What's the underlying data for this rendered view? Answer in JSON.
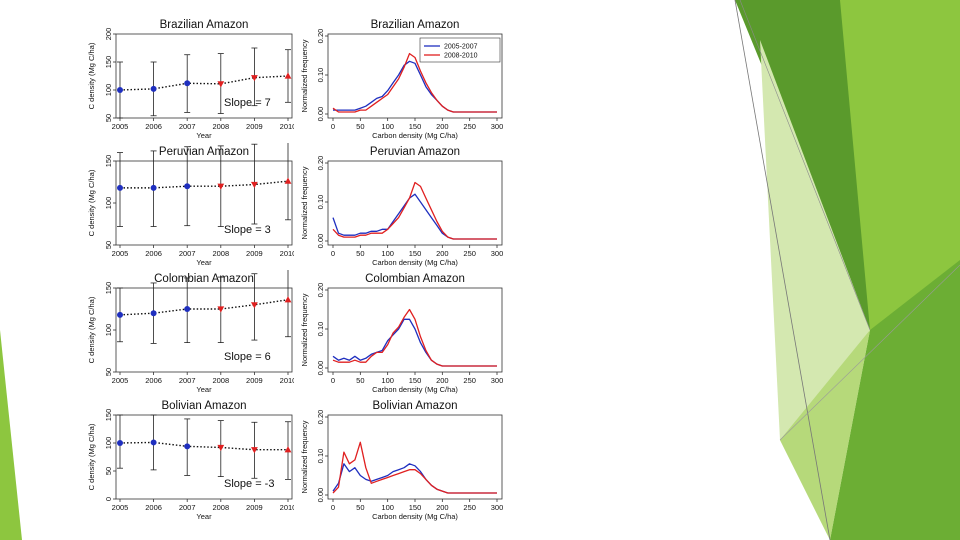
{
  "colors": {
    "series_early": "#1f2fbf",
    "series_late": "#e02020",
    "trend": "#111111",
    "slide_green_dark": "#5a9a2c",
    "slide_green_mid": "#8dc63f",
    "slide_green_light": "#d4e8b0"
  },
  "chart_data": [
    {
      "type": "scatter",
      "title": "Brazilian Amazon",
      "xlabel": "Year",
      "ylabel": "C density (Mg C/ha)",
      "x": [
        2005,
        2006,
        2007,
        2008,
        2009,
        2010
      ],
      "values": [
        100,
        102,
        112,
        111,
        122,
        125
      ],
      "errors": [
        [
          50,
          150
        ],
        [
          54,
          150
        ],
        [
          60,
          163
        ],
        [
          58,
          165
        ],
        [
          72,
          175
        ],
        [
          78,
          172
        ]
      ],
      "marker_series": [
        "2005-2007",
        "2005-2007",
        "2005-2007",
        "2008-2010",
        "2008-2010",
        "2008-2010"
      ],
      "ylim": [
        50,
        200
      ],
      "yticks": [
        50,
        100,
        150,
        200
      ],
      "slope_label": "Slope = 7"
    },
    {
      "type": "line",
      "title": "Brazilian Amazon",
      "xlabel": "Carbon density (Mg C/ha)",
      "ylabel": "Normalized frequency",
      "xlim": [
        0,
        300
      ],
      "ylim": [
        0,
        0.2
      ],
      "xticks": [
        0,
        50,
        100,
        150,
        200,
        250,
        300
      ],
      "yticks": [
        "0.00",
        "0.10",
        "0.20"
      ],
      "legend": [
        "2005-2007",
        "2008-2010"
      ],
      "x": [
        0,
        10,
        20,
        30,
        40,
        50,
        60,
        70,
        80,
        90,
        100,
        110,
        120,
        130,
        140,
        150,
        160,
        170,
        180,
        190,
        200,
        210,
        220,
        230,
        240,
        250,
        260,
        270,
        280,
        290,
        300
      ],
      "series": [
        {
          "name": "2005-2007",
          "values": [
            0.01,
            0.01,
            0.01,
            0.01,
            0.01,
            0.015,
            0.02,
            0.03,
            0.04,
            0.045,
            0.06,
            0.08,
            0.1,
            0.125,
            0.135,
            0.13,
            0.1,
            0.07,
            0.05,
            0.035,
            0.02,
            0.01,
            0.005,
            0.005,
            0.005,
            0.005,
            0.005,
            0.005,
            0.005,
            0.005,
            0.005
          ]
        },
        {
          "name": "2008-2010",
          "values": [
            0.015,
            0.005,
            0.005,
            0.005,
            0.005,
            0.01,
            0.01,
            0.02,
            0.03,
            0.04,
            0.05,
            0.07,
            0.09,
            0.12,
            0.155,
            0.145,
            0.11,
            0.08,
            0.055,
            0.035,
            0.02,
            0.01,
            0.005,
            0.005,
            0.005,
            0.005,
            0.005,
            0.005,
            0.005,
            0.005,
            0.005
          ]
        }
      ]
    },
    {
      "type": "scatter",
      "title": "Peruvian Amazon",
      "xlabel": "Year",
      "ylabel": "C density (Mg C/ha)",
      "x": [
        2005,
        2006,
        2007,
        2008,
        2009,
        2010
      ],
      "values": [
        118,
        118,
        120,
        120,
        122,
        126
      ],
      "errors": [
        [
          72,
          160
        ],
        [
          72,
          162
        ],
        [
          73,
          167
        ],
        [
          72,
          168
        ],
        [
          75,
          170
        ],
        [
          80,
          175
        ]
      ],
      "marker_series": [
        "2005-2007",
        "2005-2007",
        "2005-2007",
        "2008-2010",
        "2008-2010",
        "2008-2010"
      ],
      "ylim": [
        50,
        150
      ],
      "yticks": [
        50,
        100,
        150
      ],
      "slope_label": "Slope = 3"
    },
    {
      "type": "line",
      "title": "Peruvian Amazon",
      "xlabel": "Carbon density (Mg C/ha)",
      "ylabel": "Normalized frequency",
      "xlim": [
        0,
        300
      ],
      "ylim": [
        0,
        0.2
      ],
      "xticks": [
        0,
        50,
        100,
        150,
        200,
        250,
        300
      ],
      "yticks": [
        "0.00",
        "0.10",
        "0.20"
      ],
      "legend": [],
      "x": [
        0,
        10,
        20,
        30,
        40,
        50,
        60,
        70,
        80,
        90,
        100,
        110,
        120,
        130,
        140,
        150,
        160,
        170,
        180,
        190,
        200,
        210,
        220,
        230,
        240,
        250,
        260,
        270,
        280,
        290,
        300
      ],
      "series": [
        {
          "name": "2005-2007",
          "values": [
            0.06,
            0.02,
            0.015,
            0.015,
            0.015,
            0.02,
            0.02,
            0.025,
            0.025,
            0.03,
            0.03,
            0.05,
            0.07,
            0.09,
            0.11,
            0.12,
            0.1,
            0.08,
            0.06,
            0.04,
            0.02,
            0.01,
            0.005,
            0.005,
            0.005,
            0.005,
            0.005,
            0.005,
            0.005,
            0.005,
            0.005
          ]
        },
        {
          "name": "2008-2010",
          "values": [
            0.03,
            0.015,
            0.01,
            0.01,
            0.01,
            0.015,
            0.015,
            0.02,
            0.02,
            0.02,
            0.03,
            0.045,
            0.06,
            0.085,
            0.11,
            0.15,
            0.14,
            0.11,
            0.08,
            0.05,
            0.025,
            0.01,
            0.005,
            0.005,
            0.005,
            0.005,
            0.005,
            0.005,
            0.005,
            0.005,
            0.005
          ]
        }
      ]
    },
    {
      "type": "scatter",
      "title": "Colombian Amazon",
      "xlabel": "Year",
      "ylabel": "C density (Mg C/ha)",
      "x": [
        2005,
        2006,
        2007,
        2008,
        2009,
        2010
      ],
      "values": [
        118,
        120,
        125,
        125,
        130,
        136
      ],
      "errors": [
        [
          86,
          150
        ],
        [
          84,
          156
        ],
        [
          85,
          162
        ],
        [
          85,
          163
        ],
        [
          88,
          167
        ],
        [
          92,
          172
        ]
      ],
      "marker_series": [
        "2005-2007",
        "2005-2007",
        "2005-2007",
        "2008-2010",
        "2008-2010",
        "2008-2010"
      ],
      "ylim": [
        50,
        150
      ],
      "yticks": [
        50,
        100,
        150
      ],
      "slope_label": "Slope = 6"
    },
    {
      "type": "line",
      "title": "Colombian Amazon",
      "xlabel": "Carbon density (Mg C/ha)",
      "ylabel": "Normalized frequency",
      "xlim": [
        0,
        300
      ],
      "ylim": [
        0,
        0.2
      ],
      "xticks": [
        0,
        50,
        100,
        150,
        200,
        250,
        300
      ],
      "yticks": [
        "0.00",
        "0.10",
        "0.20"
      ],
      "legend": [],
      "x": [
        0,
        10,
        20,
        30,
        40,
        50,
        60,
        70,
        80,
        90,
        100,
        110,
        120,
        130,
        140,
        150,
        160,
        170,
        180,
        190,
        200,
        210,
        220,
        230,
        240,
        250,
        260,
        270,
        280,
        290,
        300
      ],
      "series": [
        {
          "name": "2005-2007",
          "values": [
            0.03,
            0.02,
            0.025,
            0.02,
            0.03,
            0.02,
            0.025,
            0.035,
            0.04,
            0.045,
            0.07,
            0.085,
            0.1,
            0.125,
            0.125,
            0.1,
            0.065,
            0.04,
            0.02,
            0.01,
            0.005,
            0.005,
            0.005,
            0.005,
            0.005,
            0.005,
            0.005,
            0.005,
            0.005,
            0.005,
            0.005
          ]
        },
        {
          "name": "2008-2010",
          "values": [
            0.02,
            0.015,
            0.015,
            0.015,
            0.02,
            0.015,
            0.015,
            0.03,
            0.04,
            0.04,
            0.06,
            0.09,
            0.105,
            0.13,
            0.15,
            0.125,
            0.08,
            0.045,
            0.02,
            0.01,
            0.005,
            0.005,
            0.005,
            0.005,
            0.005,
            0.005,
            0.005,
            0.005,
            0.005,
            0.005,
            0.005
          ]
        }
      ]
    },
    {
      "type": "scatter",
      "title": "Bolivian Amazon",
      "xlabel": "Year",
      "ylabel": "C density (Mg C/ha)",
      "x": [
        2005,
        2006,
        2007,
        2008,
        2009,
        2010
      ],
      "values": [
        100,
        101,
        94,
        92,
        88,
        88
      ],
      "errors": [
        [
          55,
          150
        ],
        [
          52,
          150
        ],
        [
          42,
          143
        ],
        [
          40,
          140
        ],
        [
          37,
          137
        ],
        [
          35,
          138
        ]
      ],
      "marker_series": [
        "2005-2007",
        "2005-2007",
        "2005-2007",
        "2008-2010",
        "2008-2010",
        "2008-2010"
      ],
      "ylim": [
        0,
        150
      ],
      "yticks": [
        0,
        50,
        100,
        150
      ],
      "slope_label": "Slope = -3"
    },
    {
      "type": "line",
      "title": "Bolivian Amazon",
      "xlabel": "Carbon density (Mg C/ha)",
      "ylabel": "Normalized frequency",
      "xlim": [
        0,
        300
      ],
      "ylim": [
        0,
        0.2
      ],
      "xticks": [
        0,
        50,
        100,
        150,
        200,
        250,
        300
      ],
      "yticks": [
        "0.00",
        "0.10",
        "0.20"
      ],
      "legend": [],
      "x": [
        0,
        10,
        20,
        30,
        40,
        50,
        60,
        70,
        80,
        90,
        100,
        110,
        120,
        130,
        140,
        150,
        160,
        170,
        180,
        190,
        200,
        210,
        220,
        230,
        240,
        250,
        260,
        270,
        280,
        290,
        300
      ],
      "series": [
        {
          "name": "2005-2007",
          "values": [
            0.01,
            0.03,
            0.08,
            0.06,
            0.07,
            0.05,
            0.04,
            0.035,
            0.04,
            0.045,
            0.05,
            0.06,
            0.065,
            0.07,
            0.08,
            0.075,
            0.06,
            0.04,
            0.025,
            0.015,
            0.01,
            0.005,
            0.005,
            0.005,
            0.005,
            0.005,
            0.005,
            0.005,
            0.005,
            0.005,
            0.005
          ]
        },
        {
          "name": "2008-2010",
          "values": [
            0.005,
            0.02,
            0.11,
            0.08,
            0.09,
            0.135,
            0.07,
            0.03,
            0.035,
            0.04,
            0.045,
            0.05,
            0.055,
            0.06,
            0.065,
            0.065,
            0.055,
            0.04,
            0.025,
            0.015,
            0.01,
            0.005,
            0.005,
            0.005,
            0.005,
            0.005,
            0.005,
            0.005,
            0.005,
            0.005,
            0.005
          ]
        }
      ]
    }
  ]
}
